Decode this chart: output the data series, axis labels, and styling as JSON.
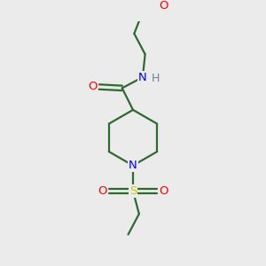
{
  "bg_color": "#ebebeb",
  "atom_colors": {
    "C": "#2d6b2d",
    "N": "#0000ff",
    "O": "#ff0000",
    "S": "#cccc00",
    "H": "#708090"
  },
  "bond_color": "#2d6b2d",
  "figsize": [
    3.0,
    3.0
  ],
  "dpi": 100
}
